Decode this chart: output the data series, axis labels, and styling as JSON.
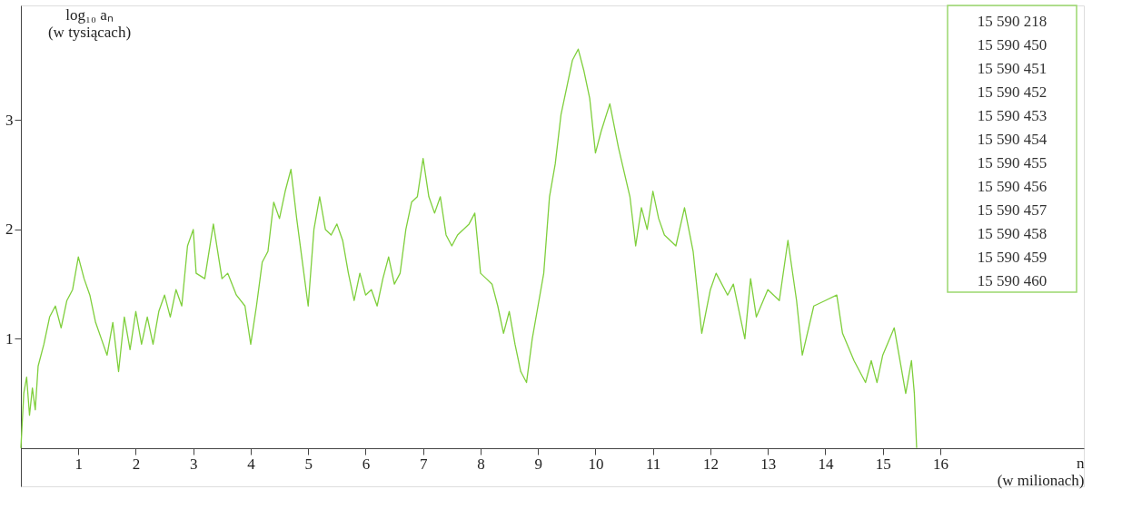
{
  "chart_data": {
    "type": "line",
    "xlabel": "n\n(w milionach)",
    "ylabel": "log₁₀ aₙ\n(w tysiącach)",
    "xlim": [
      0,
      18.5
    ],
    "ylim": [
      -0.35,
      4.05
    ],
    "xticks": [
      1,
      2,
      3,
      4,
      5,
      6,
      7,
      8,
      9,
      10,
      11,
      12,
      13,
      14,
      15,
      16
    ],
    "yticks": [
      1,
      2,
      3
    ],
    "grid": false,
    "marker": "none",
    "line_style": "solid",
    "annotations": [
      "15 590 218",
      "15 590 450",
      "15 590 451",
      "15 590 452",
      "15 590 453",
      "15 590 454",
      "15 590 455",
      "15 590 456",
      "15 590 457",
      "15 590 458",
      "15 590 459",
      "15 590 460"
    ],
    "series": [
      {
        "color": "#7fcf3c",
        "x": [
          0,
          0.05,
          0.1,
          0.15,
          0.2,
          0.25,
          0.3,
          0.4,
          0.5,
          0.6,
          0.7,
          0.8,
          0.9,
          1.0,
          1.1,
          1.2,
          1.3,
          1.4,
          1.5,
          1.6,
          1.7,
          1.8,
          1.9,
          2.0,
          2.1,
          2.2,
          2.3,
          2.4,
          2.5,
          2.6,
          2.7,
          2.8,
          2.9,
          3.0,
          3.05,
          3.2,
          3.35,
          3.5,
          3.6,
          3.75,
          3.9,
          4.0,
          4.1,
          4.2,
          4.3,
          4.4,
          4.5,
          4.6,
          4.7,
          4.8,
          4.9,
          5.0,
          5.1,
          5.2,
          5.3,
          5.4,
          5.5,
          5.6,
          5.7,
          5.8,
          5.9,
          6.0,
          6.1,
          6.2,
          6.3,
          6.4,
          6.5,
          6.6,
          6.7,
          6.8,
          6.9,
          7.0,
          7.1,
          7.2,
          7.3,
          7.4,
          7.5,
          7.6,
          7.8,
          7.9,
          8.0,
          8.1,
          8.2,
          8.3,
          8.4,
          8.5,
          8.6,
          8.7,
          8.8,
          8.9,
          9.0,
          9.1,
          9.2,
          9.3,
          9.4,
          9.5,
          9.6,
          9.7,
          9.8,
          9.9,
          10.0,
          10.1,
          10.25,
          10.4,
          10.6,
          10.7,
          10.8,
          10.9,
          11.0,
          11.1,
          11.2,
          11.4,
          11.55,
          11.7,
          11.85,
          12.0,
          12.1,
          12.3,
          12.4,
          12.6,
          12.7,
          12.8,
          13.0,
          13.2,
          13.35,
          13.5,
          13.6,
          13.8,
          14.0,
          14.2,
          14.3,
          14.5,
          14.7,
          14.8,
          14.9,
          15.0,
          15.2,
          15.3,
          15.4,
          15.5,
          15.55,
          15.59
        ],
        "values": [
          0,
          0.5,
          0.65,
          0.3,
          0.55,
          0.35,
          0.75,
          0.95,
          1.2,
          1.3,
          1.1,
          1.35,
          1.45,
          1.75,
          1.55,
          1.4,
          1.15,
          1.0,
          0.85,
          1.15,
          0.7,
          1.2,
          0.9,
          1.25,
          0.95,
          1.2,
          0.95,
          1.25,
          1.4,
          1.2,
          1.45,
          1.3,
          1.85,
          2.0,
          1.6,
          1.55,
          2.05,
          1.55,
          1.6,
          1.4,
          1.3,
          0.95,
          1.3,
          1.7,
          1.8,
          2.25,
          2.1,
          2.35,
          2.55,
          2.1,
          1.7,
          1.3,
          2.0,
          2.3,
          2.0,
          1.95,
          2.05,
          1.9,
          1.6,
          1.35,
          1.6,
          1.4,
          1.45,
          1.3,
          1.55,
          1.75,
          1.5,
          1.6,
          2.0,
          2.25,
          2.3,
          2.65,
          2.3,
          2.15,
          2.3,
          1.95,
          1.85,
          1.95,
          2.05,
          2.15,
          1.6,
          1.55,
          1.5,
          1.3,
          1.05,
          1.25,
          0.95,
          0.7,
          0.6,
          1.0,
          1.3,
          1.6,
          2.3,
          2.6,
          3.05,
          3.3,
          3.55,
          3.65,
          3.45,
          3.2,
          2.7,
          2.9,
          3.15,
          2.75,
          2.3,
          1.85,
          2.2,
          2.0,
          2.35,
          2.1,
          1.95,
          1.85,
          2.2,
          1.8,
          1.05,
          1.45,
          1.6,
          1.4,
          1.5,
          1.0,
          1.55,
          1.2,
          1.45,
          1.35,
          1.9,
          1.35,
          0.85,
          1.3,
          1.35,
          1.4,
          1.05,
          0.8,
          0.6,
          0.8,
          0.6,
          0.85,
          1.1,
          0.8,
          0.5,
          0.8,
          0.5,
          0
        ]
      }
    ]
  }
}
